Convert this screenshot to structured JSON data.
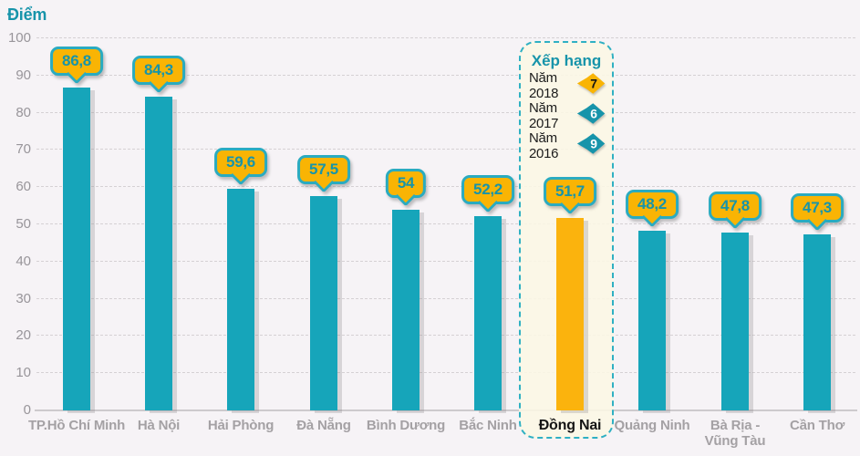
{
  "chart_data": {
    "type": "bar",
    "title": "Điểm",
    "ylabel": "Điểm",
    "categories": [
      "TP.Hồ Chí Minh",
      "Hà Nội",
      "Hải Phòng",
      "Đà Nẵng",
      "Bình Dương",
      "Bắc Ninh",
      "Đồng Nai",
      "Quảng Ninh",
      "Bà Rịa -\nVũng Tàu",
      "Cần Thơ"
    ],
    "values": [
      86.8,
      84.3,
      59.6,
      57.5,
      54,
      52.2,
      51.7,
      48.2,
      47.8,
      47.3
    ],
    "value_labels": [
      "86,8",
      "84,3",
      "59,6",
      "57,5",
      "54",
      "52,2",
      "51,7",
      "48,2",
      "47,8",
      "47,3"
    ],
    "highlight_index": 6,
    "highlighted_category": "Đồng Nai",
    "ylim": [
      0,
      100
    ],
    "yticks": [
      0,
      10,
      20,
      30,
      40,
      50,
      60,
      70,
      80,
      90,
      100
    ],
    "grid": "horizontal-dashed",
    "legend_position": "inside-top-over-highlighted-bar",
    "bar_color": "#16a5ba",
    "highlight_bar_color": "#fbb30d"
  },
  "legend": {
    "title": "Xếp hạng",
    "rows": [
      {
        "label": "Năm 2018",
        "value": "7",
        "marker_color": "#f9b404",
        "value_color": "#141414"
      },
      {
        "label": "Năm 2017",
        "value": "6",
        "marker_color": "#1794aa",
        "value_color": "#ffffff"
      },
      {
        "label": "Năm 2016",
        "value": "9",
        "marker_color": "#1794aa",
        "value_color": "#ffffff"
      }
    ]
  },
  "colors": {
    "background": "#f6f3f6",
    "bar_teal": "#16a5ba",
    "bar_orange": "#fbb30d",
    "bubble_fill": "#f9b404",
    "bubble_border": "#2aabc0",
    "bubble_text": "#1794aa",
    "highlight_box_fill": "#fcf7e5",
    "highlight_box_border": "#2fb0c3",
    "axis_text": "#98959a",
    "category_text": "#a4a1a4",
    "gridline": "#d5d1d4"
  }
}
